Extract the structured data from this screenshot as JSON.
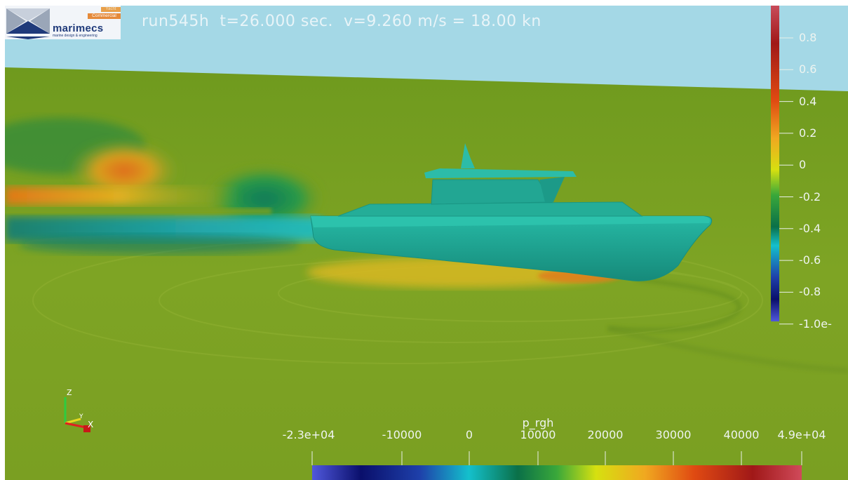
{
  "header": {
    "run_title": "run545h  t=26.000 sec.  v=9.260 m/s = 18.00 kn"
  },
  "logo": {
    "brand": "marimecs",
    "tagline": "marine design & engineering",
    "badge_yacht": "Yacht",
    "badge_commercial": "Commercial"
  },
  "vertical_colorbar": {
    "ticks": [
      "0.8",
      "0.6",
      "0.4",
      "0.2",
      "0",
      "-0.2",
      "-0.4",
      "-0.6",
      "-0.8",
      "-1.0e-"
    ],
    "colors": [
      "#b4283a",
      "#8a1010",
      "#d23c14",
      "#ee8a1e",
      "#e6e015",
      "#3aa83a",
      "#0a6b40",
      "#12b4c8",
      "#1f3ea8",
      "#0a0f6b",
      "#5055d8"
    ]
  },
  "horizontal_colorbar": {
    "title": "p_rgh",
    "ticks": [
      "-2.3e+04",
      "-10000",
      "0",
      "10000",
      "20000",
      "30000",
      "40000",
      "4.9e+04"
    ],
    "colors": [
      "#5055d8",
      "#0a0f6b",
      "#1f3ea8",
      "#12b4c8",
      "#0a6b40",
      "#3aa83a",
      "#e6e015",
      "#ee8a1e",
      "#d23c14",
      "#8a1010",
      "#d04a5a"
    ]
  },
  "axes_triad": {
    "z": "Z",
    "y": "Y",
    "x": "X"
  },
  "colors": {
    "sky": "#a4d8e6",
    "sea": "#7d9e22",
    "hull": "#1fa894"
  }
}
